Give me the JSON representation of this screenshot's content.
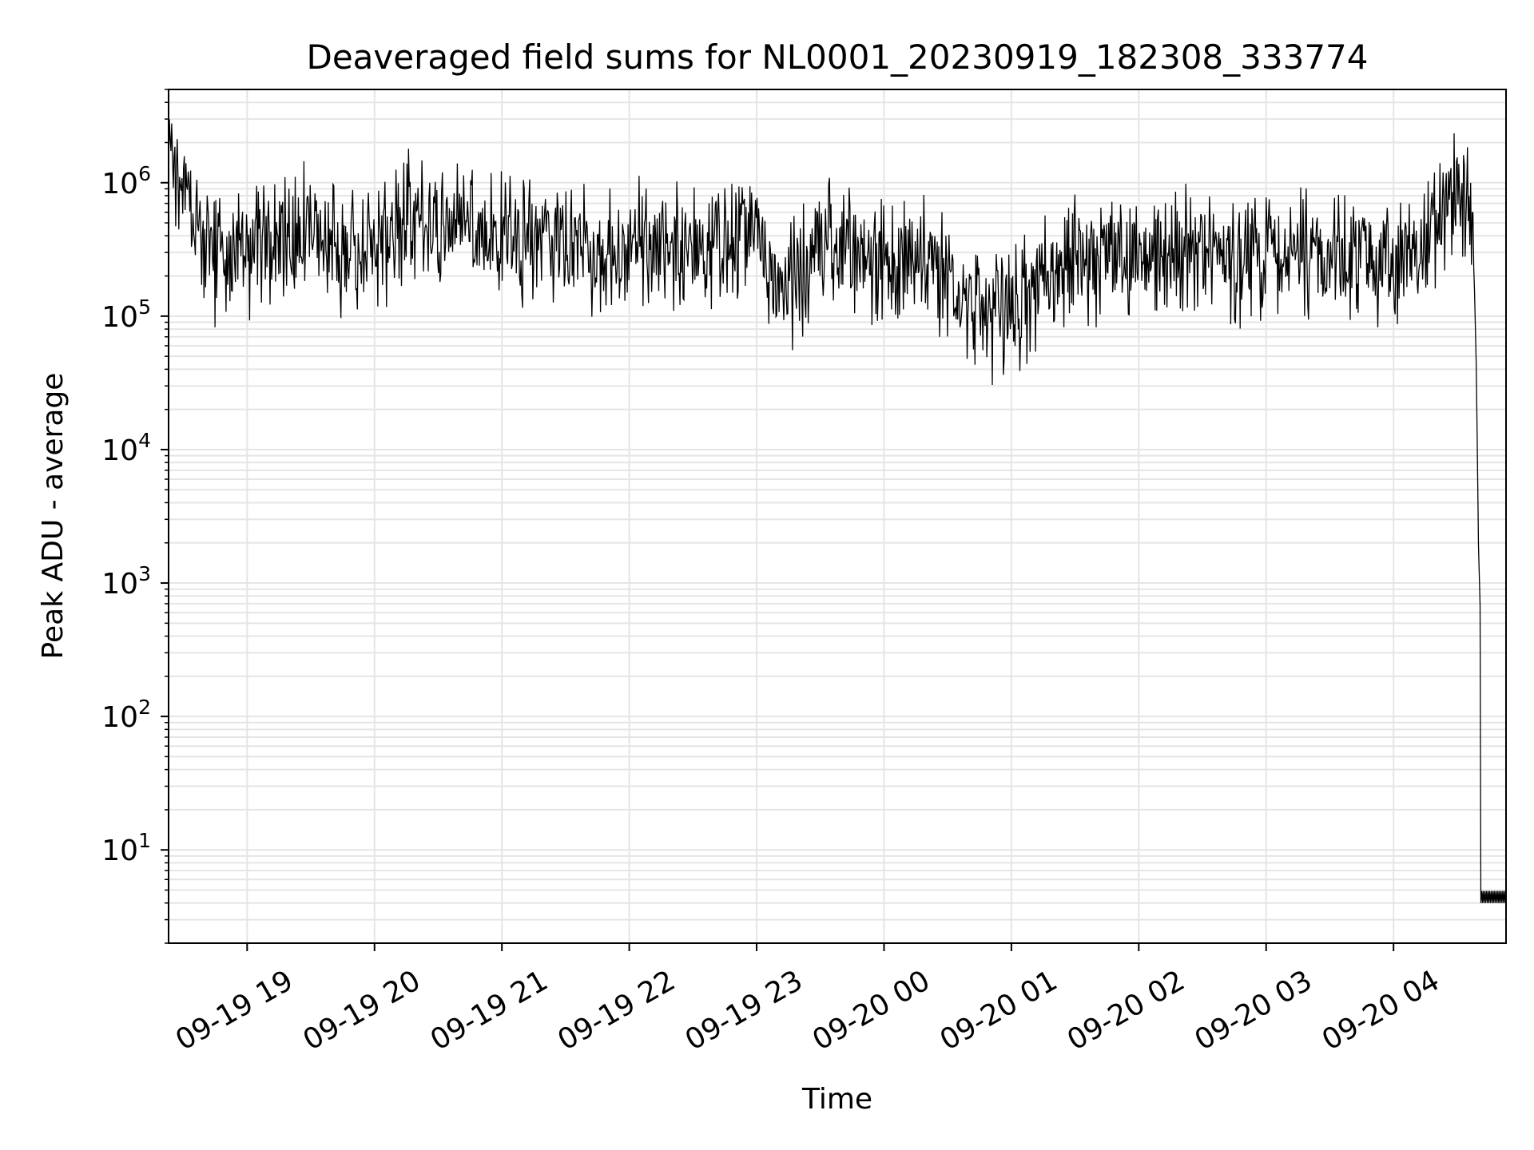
{
  "chart_data": {
    "type": "line",
    "title": "Deaveraged field sums for NL0001_20230919_182308_333774",
    "xlabel": "Time",
    "ylabel": "Peak ADU - average",
    "yscale": "log",
    "ylim": [
      2,
      5000000
    ],
    "xlim": [
      "2023-09-19 18:23",
      "2023-09-20 04:53"
    ],
    "grid": true,
    "line_color": "#000000",
    "grid_color": "#e5e5e5",
    "x_ticks": [
      {
        "value": "2023-09-19 19:00",
        "label": "09-19 19"
      },
      {
        "value": "2023-09-19 20:00",
        "label": "09-19 20"
      },
      {
        "value": "2023-09-19 21:00",
        "label": "09-19 21"
      },
      {
        "value": "2023-09-19 22:00",
        "label": "09-19 22"
      },
      {
        "value": "2023-09-19 23:00",
        "label": "09-19 23"
      },
      {
        "value": "2023-09-20 00:00",
        "label": "09-20 00"
      },
      {
        "value": "2023-09-20 01:00",
        "label": "09-20 01"
      },
      {
        "value": "2023-09-20 02:00",
        "label": "09-20 02"
      },
      {
        "value": "2023-09-20 03:00",
        "label": "09-20 03"
      },
      {
        "value": "2023-09-20 04:00",
        "label": "09-20 04"
      }
    ],
    "y_ticks": [
      {
        "value": 10,
        "base": "10",
        "exp": "1"
      },
      {
        "value": 100,
        "base": "10",
        "exp": "2"
      },
      {
        "value": 1000,
        "base": "10",
        "exp": "3"
      },
      {
        "value": 10000,
        "base": "10",
        "exp": "4"
      },
      {
        "value": 100000,
        "base": "10",
        "exp": "5"
      },
      {
        "value": 1000000,
        "base": "10",
        "exp": "6"
      }
    ],
    "series": [
      {
        "x": [
          "2023-09-19 18:23",
          "2023-09-19 18:27",
          "2023-09-19 18:33",
          "2023-09-19 18:40",
          "2023-09-19 18:50",
          "2023-09-19 19:00",
          "2023-09-19 19:15",
          "2023-09-19 19:30",
          "2023-09-19 19:45",
          "2023-09-19 20:00",
          "2023-09-19 20:15",
          "2023-09-19 20:30",
          "2023-09-19 20:45",
          "2023-09-19 21:00",
          "2023-09-19 21:15",
          "2023-09-19 21:30",
          "2023-09-19 21:45",
          "2023-09-19 22:00",
          "2023-09-19 22:15",
          "2023-09-19 22:30",
          "2023-09-19 22:45",
          "2023-09-19 23:00",
          "2023-09-19 23:10",
          "2023-09-19 23:20",
          "2023-09-19 23:30",
          "2023-09-19 23:45",
          "2023-09-20 00:00",
          "2023-09-20 00:15",
          "2023-09-20 00:30",
          "2023-09-20 00:45",
          "2023-09-20 00:55",
          "2023-09-20 01:05",
          "2023-09-20 01:15",
          "2023-09-20 01:30",
          "2023-09-20 01:45",
          "2023-09-20 02:00",
          "2023-09-20 02:15",
          "2023-09-20 02:30",
          "2023-09-20 02:45",
          "2023-09-20 03:00",
          "2023-09-20 03:15",
          "2023-09-20 03:30",
          "2023-09-20 03:45",
          "2023-09-20 04:00",
          "2023-09-20 04:15",
          "2023-09-20 04:25",
          "2023-09-20 04:32",
          "2023-09-20 04:36",
          "2023-09-20 04:38",
          "2023-09-20 04:39",
          "2023-09-20 04:40",
          "2023-09-20 04:41",
          "2023-09-20 04:53"
        ],
        "y": [
          900000,
          1400000,
          700000,
          300000,
          250000,
          280000,
          350000,
          500000,
          300000,
          300000,
          600000,
          500000,
          450000,
          400000,
          350000,
          350000,
          300000,
          350000,
          400000,
          300000,
          350000,
          500000,
          150000,
          200000,
          400000,
          300000,
          250000,
          300000,
          200000,
          100000,
          90000,
          120000,
          200000,
          300000,
          250000,
          300000,
          350000,
          350000,
          250000,
          250000,
          300000,
          250000,
          300000,
          250000,
          300000,
          700000,
          900000,
          600000,
          200000,
          40000,
          2000,
          500,
          4
        ]
      }
    ],
    "noise": {
      "band_low_factor": 0.3,
      "band_high_factor": 3.2,
      "samples": 1700
    }
  }
}
